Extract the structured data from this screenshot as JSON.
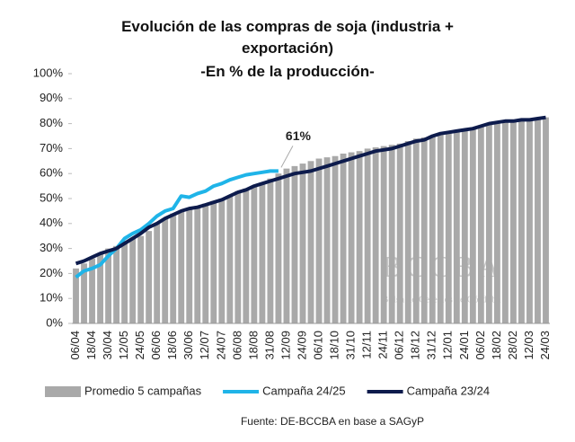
{
  "chart_data": {
    "type": "bar",
    "title": "Evolución de las compras de soja (industria + exportación)",
    "subtitle": "-En % de la producción-",
    "categories": [
      "06/04",
      null,
      "18/04",
      null,
      "30/04",
      null,
      "12/05",
      null,
      "24/05",
      null,
      "06/06",
      null,
      "18/06",
      null,
      "30/06",
      null,
      "12/07",
      null,
      "24/07",
      null,
      "06/08",
      null,
      "18/08",
      null,
      "31/08",
      null,
      "12/09",
      null,
      "24/09",
      null,
      "06/10",
      null,
      "18/10",
      null,
      "31/10",
      null,
      "12/11",
      null,
      "24/11",
      null,
      "06/12",
      null,
      "18/12",
      null,
      "31/12",
      null,
      "12/01",
      null,
      "24/01",
      null,
      "06/02",
      null,
      "18/02",
      null,
      "28/02",
      null,
      "12/03",
      null,
      "24/03"
    ],
    "series": [
      {
        "name": "Promedio 5 campañas",
        "type": "bar",
        "color": "#a9a9a9",
        "values": [
          22,
          24,
          26,
          28,
          30,
          31,
          32,
          34,
          35,
          37,
          40,
          42,
          44,
          45,
          46,
          47,
          48,
          49,
          50,
          51,
          53,
          54,
          55,
          56,
          58,
          60,
          62,
          63,
          64,
          65,
          66,
          66.5,
          67,
          68,
          68.5,
          69,
          70,
          70.5,
          71,
          71.5,
          72,
          73,
          74,
          74.5,
          75,
          76,
          77,
          77.5,
          78,
          78.5,
          79,
          79.5,
          80,
          80.5,
          81,
          81,
          81.5,
          82,
          82.5
        ]
      },
      {
        "name": "Campaña 24/25",
        "type": "line",
        "color": "#1fb4e8",
        "values": [
          18.5,
          21,
          22,
          23.5,
          27,
          30,
          34,
          36,
          37.5,
          40,
          43,
          45,
          46,
          51,
          50.5,
          52,
          53,
          55,
          56,
          57.5,
          58.5,
          59.5,
          60,
          60.5,
          61,
          61,
          null,
          null,
          null,
          null,
          null,
          null,
          null,
          null,
          null,
          null,
          null,
          null,
          null,
          null,
          null,
          null,
          null,
          null,
          null,
          null,
          null,
          null,
          null,
          null,
          null,
          null,
          null,
          null,
          null,
          null,
          null,
          null,
          null
        ]
      },
      {
        "name": "Campaña 23/24",
        "type": "line",
        "color": "#0d1b4c",
        "values": [
          24,
          25,
          26.5,
          28,
          29,
          30,
          32,
          34,
          36,
          38.5,
          40,
          42,
          43.5,
          45,
          46,
          46.5,
          47.5,
          48.5,
          49.5,
          51,
          52.5,
          53.5,
          55,
          56,
          57,
          58,
          59,
          60,
          60.5,
          61,
          62,
          63,
          64,
          65,
          66,
          67,
          68,
          69,
          69.5,
          70,
          71,
          72,
          73,
          73.5,
          75,
          76,
          76.5,
          77,
          77.5,
          78,
          79,
          80,
          80.5,
          81,
          81,
          81.5,
          81.5,
          82,
          82.5
        ]
      }
    ],
    "annotation": "61%",
    "ylim": [
      0,
      100
    ],
    "yticks": [
      {
        "value": 0,
        "label": "0%"
      },
      {
        "value": 10,
        "label": "10%"
      },
      {
        "value": 20,
        "label": "20%"
      },
      {
        "value": 30,
        "label": "30%"
      },
      {
        "value": 40,
        "label": "40%"
      },
      {
        "value": 50,
        "label": "50%"
      },
      {
        "value": 60,
        "label": "60%"
      },
      {
        "value": 70,
        "label": "70%"
      },
      {
        "value": 80,
        "label": "80%"
      },
      {
        "value": 90,
        "label": "90%"
      },
      {
        "value": 100,
        "label": "100%"
      }
    ],
    "watermark": {
      "name": "BCCBA",
      "text": "Bolsa de Cereales de Córdoba"
    },
    "source": "Fuente: DE-BCCBA en base a SAGyP"
  }
}
